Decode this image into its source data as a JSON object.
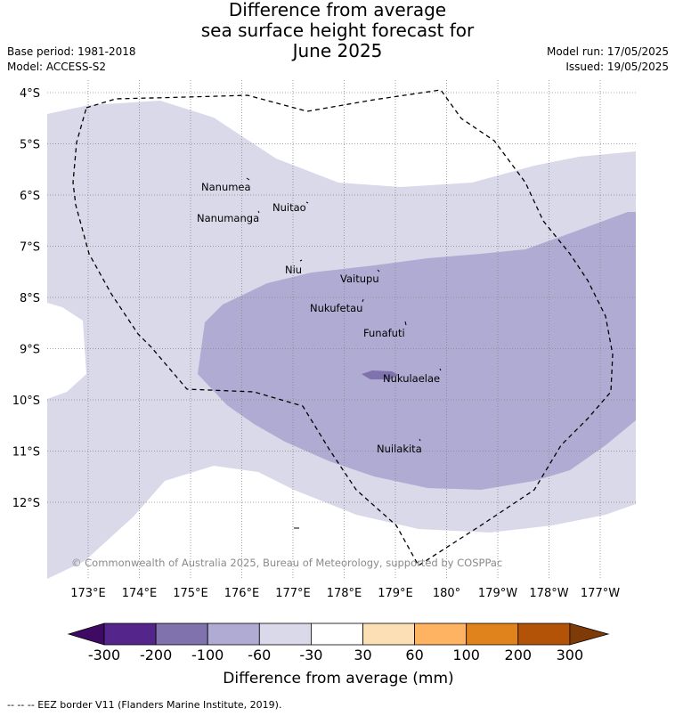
{
  "title": {
    "line1": "Difference from average",
    "line2": "sea surface height forecast for",
    "line3": "June 2025"
  },
  "meta": {
    "base_period": "Base period: 1981-2018",
    "model": "Model: ACCESS-S2",
    "model_run": "Model run: 17/05/2025",
    "issued": "Issued: 19/05/2025"
  },
  "map": {
    "lat_labels": [
      "4°S",
      "5°S",
      "6°S",
      "7°S",
      "8°S",
      "9°S",
      "10°S",
      "11°S",
      "12°S"
    ],
    "lon_labels": [
      "173°E",
      "174°E",
      "175°E",
      "176°E",
      "177°E",
      "178°E",
      "179°E",
      "180°",
      "179°W",
      "178°W",
      "177°W"
    ],
    "places": [
      {
        "name": "Nanumea"
      },
      {
        "name": "Nuitao"
      },
      {
        "name": "Nanumanga"
      },
      {
        "name": "Niu"
      },
      {
        "name": "Vaitupu"
      },
      {
        "name": "Nukufetau"
      },
      {
        "name": "Funafuti"
      },
      {
        "name": "Nukulaelae"
      },
      {
        "name": "Nuilakita"
      }
    ],
    "copyright": "© Commonwealth of Australia 2025, Bureau of Meteorology, supported by COSPPac",
    "colors": {
      "band_-60_-30": "#d9d9ea",
      "band_-100_-60": "#b0abd2",
      "band_-200_-100": "#7f72ad",
      "eez_line": "#000000"
    }
  },
  "colorbar": {
    "ticks": [
      "-300",
      "-200",
      "-100",
      "-60",
      "-30",
      "30",
      "60",
      "100",
      "200",
      "300"
    ],
    "colors": [
      "#3f0a63",
      "#54258b",
      "#7f72ad",
      "#b0abd2",
      "#d9d9ea",
      "#ffffff",
      "#fddfb5",
      "#fdb362",
      "#e0831c",
      "#b25307",
      "#7f3b07"
    ],
    "label": "Difference from average (mm)"
  },
  "footer": "--  --  -- EEZ border V11 (Flanders Marine Institute, 2019)."
}
